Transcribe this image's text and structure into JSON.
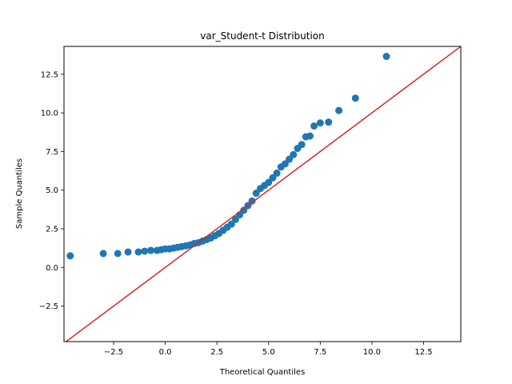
{
  "chart_data": {
    "type": "scatter",
    "title": "var_Student-t Distribution",
    "xlabel": "Theoretical Quantiles",
    "ylabel": "Sample Quantiles",
    "xlim": [
      -4.9,
      14.3
    ],
    "ylim": [
      -4.8,
      14.3
    ],
    "xticks": [
      -2.5,
      0.0,
      2.5,
      5.0,
      7.5,
      10.0,
      12.5
    ],
    "yticks": [
      -2.5,
      0.0,
      2.5,
      5.0,
      7.5,
      10.0,
      12.5
    ],
    "xtick_labels": [
      "−2.5",
      "0.0",
      "2.5",
      "5.0",
      "7.5",
      "10.0",
      "12.5"
    ],
    "ytick_labels": [
      "−2.5",
      "0.0",
      "2.5",
      "5.0",
      "7.5",
      "10.0",
      "12.5"
    ],
    "grid": false,
    "point_color": "#1f77b4",
    "reference_line_color": "#d62728",
    "reference_line": {
      "type": "45-degree",
      "from": [
        -4.9,
        -4.9
      ],
      "to": [
        14.3,
        14.3
      ]
    },
    "points": [
      [
        -4.6,
        0.75
      ],
      [
        -3.0,
        0.9
      ],
      [
        -2.3,
        0.9
      ],
      [
        -1.8,
        1.0
      ],
      [
        -1.3,
        1.0
      ],
      [
        -1.0,
        1.05
      ],
      [
        -0.7,
        1.1
      ],
      [
        -0.4,
        1.1
      ],
      [
        -0.2,
        1.15
      ],
      [
        0.0,
        1.2
      ],
      [
        0.2,
        1.2
      ],
      [
        0.4,
        1.25
      ],
      [
        0.6,
        1.3
      ],
      [
        0.8,
        1.35
      ],
      [
        1.0,
        1.4
      ],
      [
        1.2,
        1.45
      ],
      [
        1.4,
        1.55
      ],
      [
        1.6,
        1.6
      ],
      [
        1.8,
        1.7
      ],
      [
        2.0,
        1.8
      ],
      [
        2.2,
        1.9
      ],
      [
        2.4,
        2.05
      ],
      [
        2.6,
        2.2
      ],
      [
        2.8,
        2.4
      ],
      [
        3.0,
        2.6
      ],
      [
        3.2,
        2.8
      ],
      [
        3.4,
        3.1
      ],
      [
        3.6,
        3.4
      ],
      [
        3.8,
        3.7
      ],
      [
        4.0,
        4.0
      ],
      [
        4.2,
        4.3
      ],
      [
        4.4,
        4.8
      ],
      [
        4.6,
        5.1
      ],
      [
        4.8,
        5.3
      ],
      [
        5.0,
        5.5
      ],
      [
        5.2,
        5.8
      ],
      [
        5.4,
        6.1
      ],
      [
        5.6,
        6.5
      ],
      [
        5.8,
        6.7
      ],
      [
        6.0,
        7.0
      ],
      [
        6.2,
        7.3
      ],
      [
        6.4,
        7.7
      ],
      [
        6.6,
        7.95
      ],
      [
        6.8,
        8.45
      ],
      [
        7.0,
        8.5
      ],
      [
        7.2,
        9.15
      ],
      [
        7.5,
        9.35
      ],
      [
        7.9,
        9.4
      ],
      [
        8.4,
        10.15
      ],
      [
        9.2,
        10.95
      ],
      [
        10.7,
        13.65
      ]
    ]
  }
}
